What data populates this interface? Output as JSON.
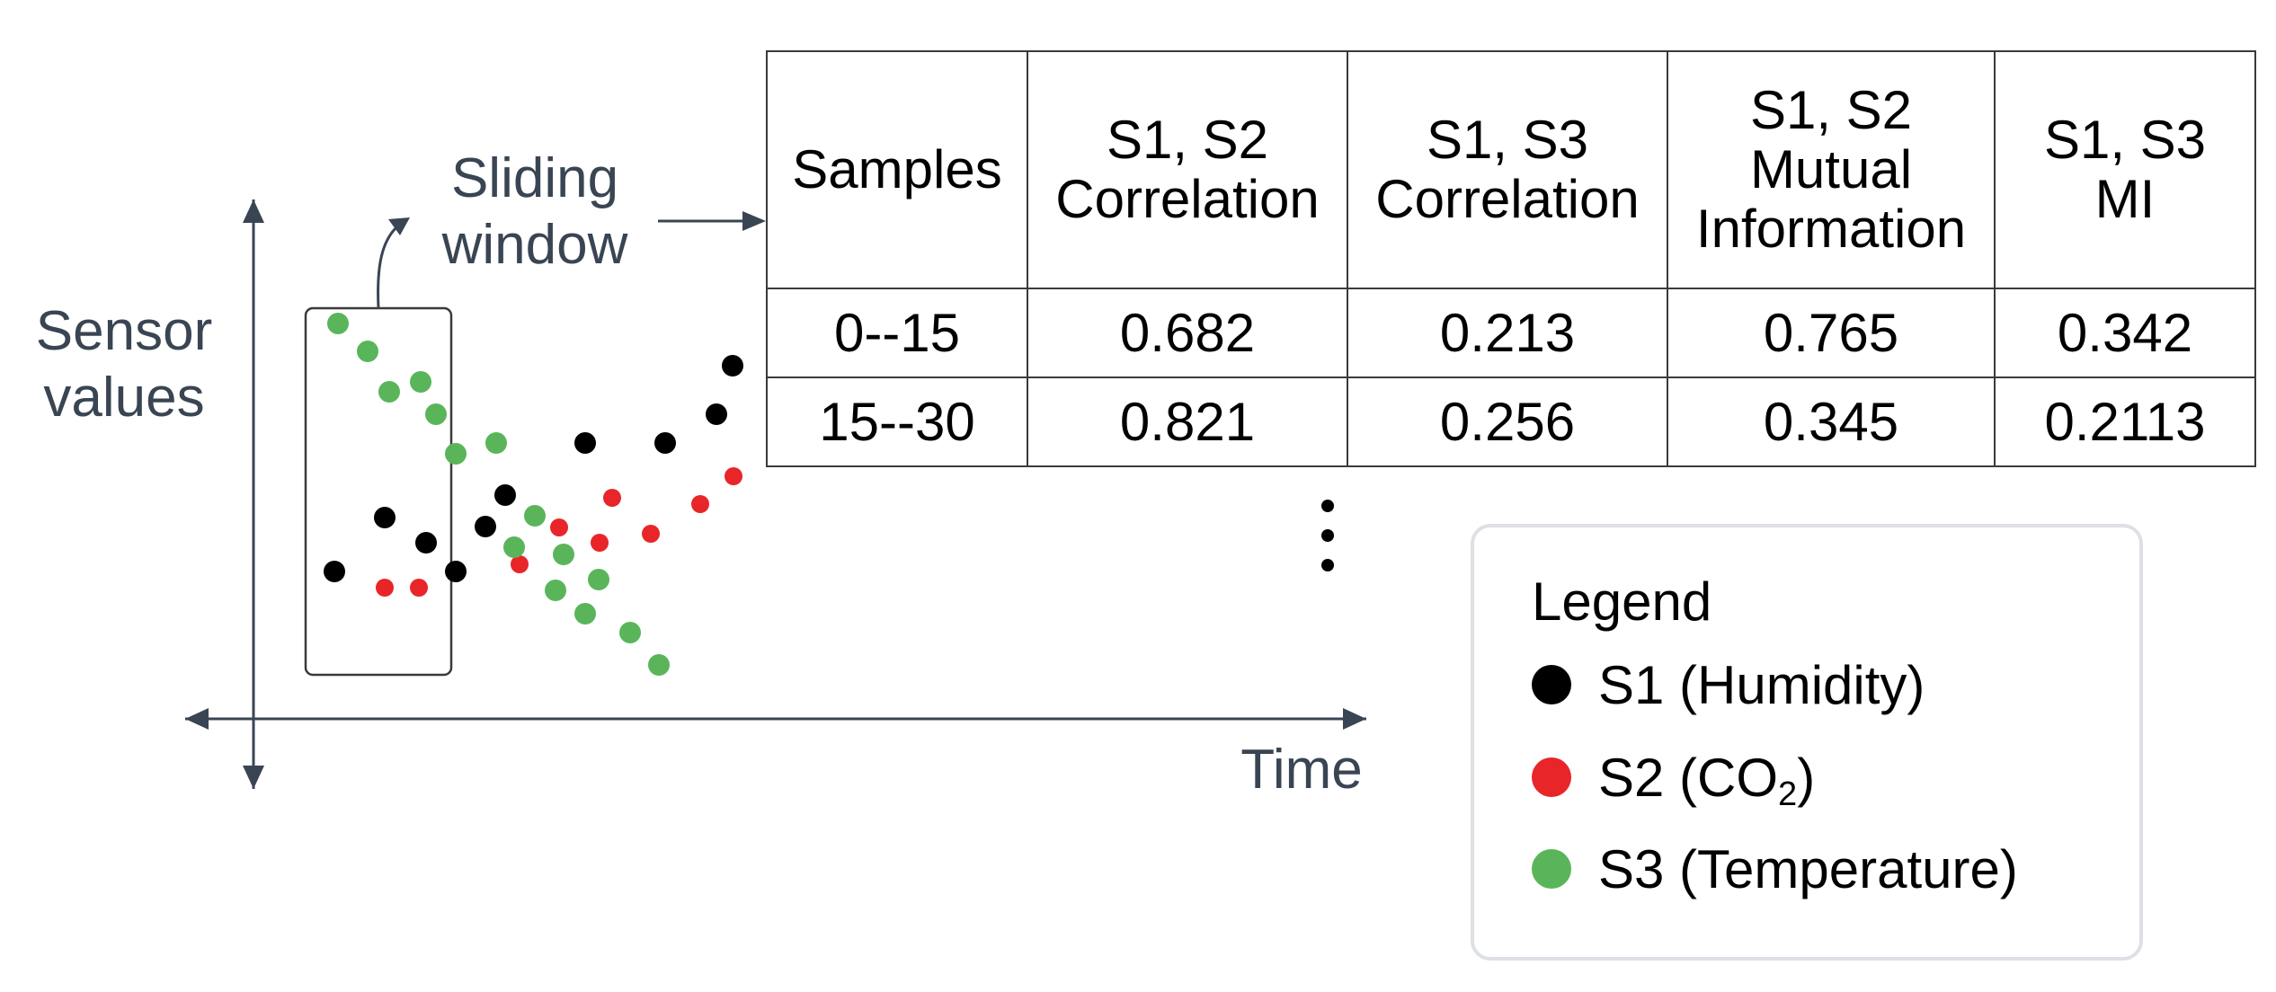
{
  "colors": {
    "s1": "#000000",
    "s2": "#e8262a",
    "s3": "#5ab55a",
    "axis": "#3a4553"
  },
  "axes": {
    "y_label": "Sensor values",
    "x_label": "Time"
  },
  "sliding_window": {
    "label": "Sliding window"
  },
  "table": {
    "headers": [
      {
        "lines": [
          "Samples"
        ]
      },
      {
        "lines": [
          "S1, S2",
          "Correlation"
        ]
      },
      {
        "lines": [
          "S1, S3",
          "Correlation"
        ]
      },
      {
        "lines": [
          "S1, S2",
          "Mutual",
          "Information"
        ]
      },
      {
        "lines": [
          "S1, S3",
          "MI"
        ]
      }
    ],
    "rows": [
      [
        "0--15",
        "0.682",
        "0.213",
        "0.765",
        "0.342"
      ],
      [
        "15--30",
        "0.821",
        "0.256",
        "0.345",
        "0.2113"
      ]
    ],
    "continuation": "vertical-ellipsis"
  },
  "legend": {
    "title": "Legend",
    "items": [
      {
        "series": "s1",
        "label": "S1 (Humidity)",
        "label_pre": "S1 (Humidity)",
        "label_sub": "",
        "label_post": ""
      },
      {
        "series": "s2",
        "label": "S2 (CO2)",
        "label_pre": "S2 (CO",
        "label_sub": "2",
        "label_post": ")"
      },
      {
        "series": "s3",
        "label": "S3 (Temperature)",
        "label_pre": "S3 (Temperature)",
        "label_sub": "",
        "label_post": ""
      }
    ]
  }
}
